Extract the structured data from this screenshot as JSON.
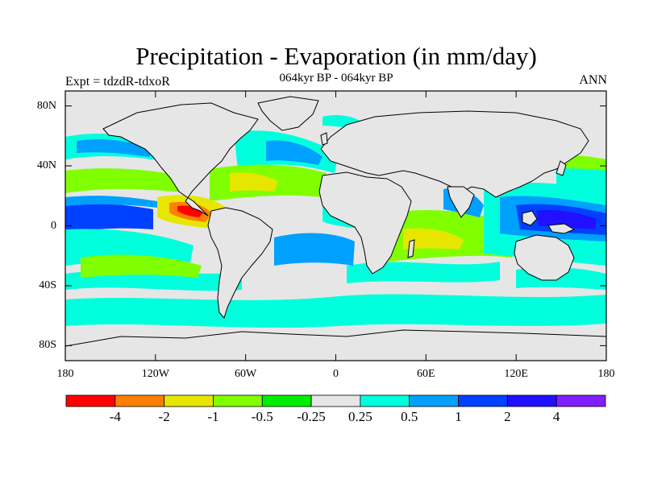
{
  "title": "Precipitation - Evaporation (in mm/day)",
  "subtitle": "064kyr BP - 064kyr BP",
  "left_label": "Expt = tdzdR-tdxoR",
  "right_label": "ANN",
  "map": {
    "land_color": "#e6e6e6",
    "ocean_base_color": "#e6e6e6",
    "lat_ticks": [
      {
        "value": 80,
        "label": "80N"
      },
      {
        "value": 40,
        "label": "40N"
      },
      {
        "value": 0,
        "label": "0"
      },
      {
        "value": -40,
        "label": "40S"
      },
      {
        "value": -80,
        "label": "80S"
      }
    ],
    "lon_ticks": [
      {
        "value": -180,
        "label": "180"
      },
      {
        "value": -120,
        "label": "120W"
      },
      {
        "value": -60,
        "label": "60W"
      },
      {
        "value": 0,
        "label": "0"
      },
      {
        "value": 60,
        "label": "60E"
      },
      {
        "value": 120,
        "label": "120E"
      },
      {
        "value": 180,
        "label": "180"
      }
    ],
    "lon_range": [
      -180,
      180
    ],
    "lat_range": [
      -90,
      90
    ]
  },
  "colorbar": {
    "colors": [
      "#ff0000",
      "#ff8000",
      "#e6e600",
      "#80ff00",
      "#00ee00",
      "#e6e6e6",
      "#00ffdd",
      "#00a0ff",
      "#0040ff",
      "#2010ff",
      "#8020ff"
    ],
    "labels": [
      "-4",
      "-2",
      "-1",
      "-0.5",
      "-0.25",
      "0.25",
      "0.5",
      "1",
      "2",
      "4"
    ]
  }
}
